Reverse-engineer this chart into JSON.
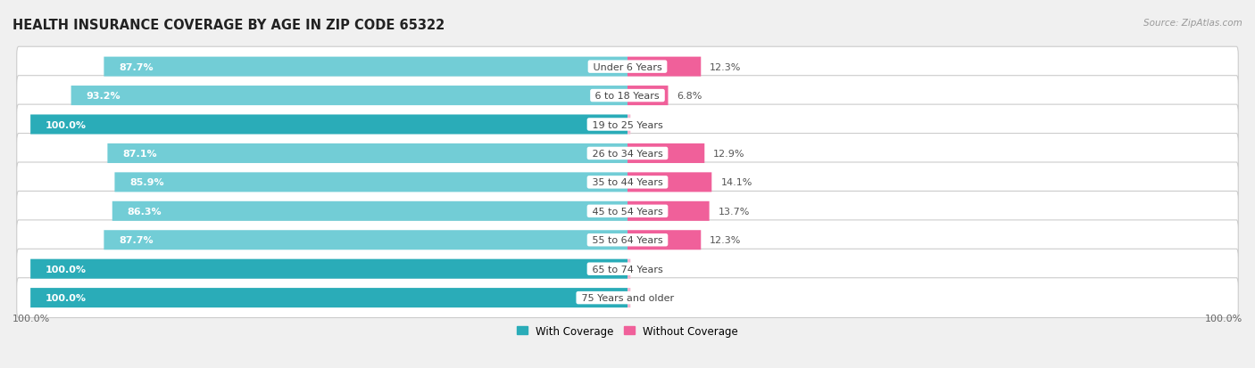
{
  "title": "HEALTH INSURANCE COVERAGE BY AGE IN ZIP CODE 65322",
  "source": "Source: ZipAtlas.com",
  "categories": [
    "Under 6 Years",
    "6 to 18 Years",
    "19 to 25 Years",
    "26 to 34 Years",
    "35 to 44 Years",
    "45 to 54 Years",
    "55 to 64 Years",
    "65 to 74 Years",
    "75 Years and older"
  ],
  "with_coverage": [
    87.7,
    93.2,
    100.0,
    87.1,
    85.9,
    86.3,
    87.7,
    100.0,
    100.0
  ],
  "without_coverage": [
    12.3,
    6.8,
    0.0,
    12.9,
    14.1,
    13.7,
    12.3,
    0.0,
    0.0
  ],
  "color_with_dark": "#2AACB8",
  "color_with_light": "#72CDD6",
  "color_without_dark": "#F0609A",
  "color_without_light": "#F4B8D0",
  "bg_color": "#f0f0f0",
  "bar_bg": "#ffffff",
  "row_bg": "#e8e8e8",
  "title_fontsize": 10.5,
  "label_fontsize": 8.0,
  "value_fontsize": 8.0,
  "legend_fontsize": 8.5,
  "source_fontsize": 7.5,
  "bar_height": 0.68,
  "max_val": 100.0,
  "axis_label": "100.0%",
  "legend_with": "With Coverage",
  "legend_without": "Without Coverage"
}
